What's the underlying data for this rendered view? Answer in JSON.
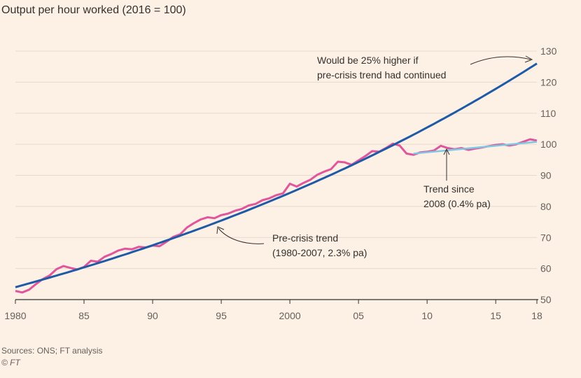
{
  "title": "Output per hour worked (2016 = 100)",
  "source": "Sources: ONS; FT analysis",
  "copyright": "© FT",
  "colors": {
    "background": "#fdf1e5",
    "grid": "#e6d9ce",
    "actual": "#e0569c",
    "pre_crisis_trend": "#1f5aa6",
    "post_2008_trend": "#7ec8e3",
    "text": "#33302e"
  },
  "chart_data": {
    "type": "line",
    "title": "Output per hour worked (2016 = 100)",
    "xlabel": "",
    "ylabel": "",
    "xlim": [
      1980,
      2018
    ],
    "ylim": [
      50,
      130
    ],
    "grid": true,
    "yticks": [
      50,
      60,
      70,
      80,
      90,
      100,
      110,
      120,
      130
    ],
    "xticks": [
      {
        "value": 1980,
        "label": "1980"
      },
      {
        "value": 1985,
        "label": "85"
      },
      {
        "value": 1990,
        "label": "90"
      },
      {
        "value": 1995,
        "label": "95"
      },
      {
        "value": 2000,
        "label": "2000"
      },
      {
        "value": 2005,
        "label": "05"
      },
      {
        "value": 2010,
        "label": "10"
      },
      {
        "value": 2015,
        "label": "15"
      },
      {
        "value": 2018,
        "label": "18"
      }
    ],
    "series": [
      {
        "name": "Output per hour worked",
        "x": [
          1980,
          1980.5,
          1981,
          1981.5,
          1982,
          1982.5,
          1983,
          1983.5,
          1984,
          1984.5,
          1985,
          1985.5,
          1986,
          1986.5,
          1987,
          1987.5,
          1988,
          1988.5,
          1989,
          1989.5,
          1990,
          1990.5,
          1991,
          1991.5,
          1992,
          1992.5,
          1993,
          1993.5,
          1994,
          1994.5,
          1995,
          1995.5,
          1996,
          1996.5,
          1997,
          1997.5,
          1998,
          1998.5,
          1999,
          1999.5,
          2000,
          2000.5,
          2001,
          2001.5,
          2002,
          2002.5,
          2003,
          2003.5,
          2004,
          2004.5,
          2005,
          2005.5,
          2006,
          2006.5,
          2007,
          2007.5,
          2008,
          2008.5,
          2009,
          2009.5,
          2010,
          2010.5,
          2011,
          2011.5,
          2012,
          2012.5,
          2013,
          2013.5,
          2014,
          2014.5,
          2015,
          2015.5,
          2016,
          2016.5,
          2017,
          2017.5,
          2018
        ],
        "values": [
          52.8,
          52.3,
          53.2,
          55.0,
          56.6,
          57.8,
          59.8,
          60.8,
          60.2,
          59.7,
          60.5,
          62.5,
          62.2,
          63.8,
          64.7,
          65.8,
          66.4,
          66.2,
          67.0,
          66.8,
          67.4,
          67.2,
          68.6,
          70.2,
          71.0,
          73.2,
          74.6,
          75.8,
          76.5,
          76.2,
          77.2,
          77.7,
          78.6,
          79.2,
          80.3,
          80.8,
          82.0,
          82.6,
          83.6,
          84.2,
          87.3,
          86.4,
          87.6,
          88.6,
          90.2,
          91.2,
          92.0,
          94.4,
          94.2,
          93.4,
          94.8,
          96.2,
          97.8,
          97.6,
          98.8,
          100.2,
          99.6,
          97.0,
          96.6,
          97.4,
          97.6,
          98.0,
          99.5,
          98.8,
          98.4,
          98.8,
          98.2,
          98.6,
          99.0,
          99.4,
          99.8,
          100.0,
          99.6,
          100.0,
          100.8,
          101.6,
          101.2
        ]
      },
      {
        "name": "Pre-crisis trend (1980-2007, 2.3% pa)",
        "start": {
          "x": 1980,
          "y": 54.0
        },
        "end": {
          "x": 2018,
          "y": 126.0
        },
        "growth_pa_percent": 2.3
      },
      {
        "name": "Trend since 2008 (0.4% pa)",
        "x": [
          2009,
          2018
        ],
        "values": [
          97.0,
          100.8
        ],
        "growth_pa_percent": 0.4
      }
    ],
    "annotations": [
      {
        "id": "higher",
        "lines": [
          "Would be 25% higher if",
          "pre-crisis trend had continued"
        ]
      },
      {
        "id": "trend2008",
        "lines": [
          "Trend since",
          "2008 (0.4% pa)"
        ]
      },
      {
        "id": "precrisis",
        "lines": [
          "Pre-crisis trend",
          "(1980-2007, 2.3% pa)"
        ]
      }
    ]
  }
}
